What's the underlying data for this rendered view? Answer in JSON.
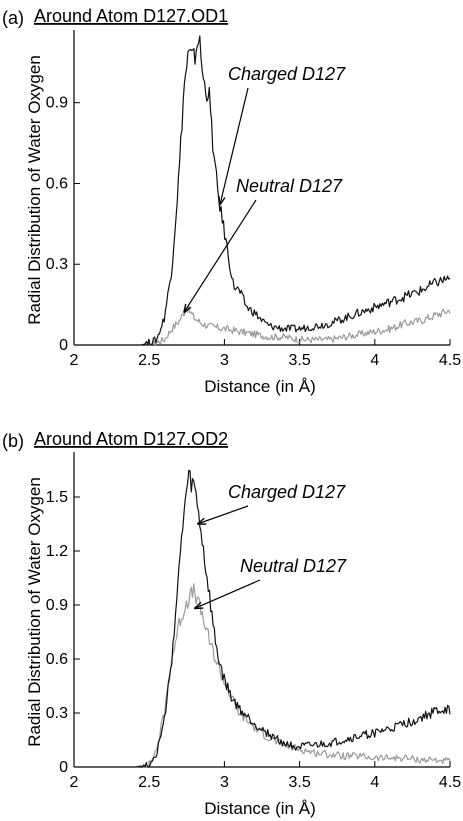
{
  "chart_data": [
    {
      "type": "line",
      "panel_label": "(a)",
      "title": "Around Atom D127.OD1",
      "xlabel": "Distance (in Å)",
      "ylabel": "Radial Distribution of Water Oxygen",
      "xlim": [
        2,
        4.5
      ],
      "ylim": [
        0,
        1.17
      ],
      "xticks": [
        2,
        2.5,
        3,
        3.5,
        4,
        4.5
      ],
      "xtick_labels": [
        "2",
        "2.5",
        "3",
        "3.5",
        "4",
        "4.5"
      ],
      "yticks": [
        0,
        0.3,
        0.6,
        0.9
      ],
      "ytick_labels": [
        "0",
        "0.3",
        "0.6",
        "0.9"
      ],
      "grid": false,
      "legend": "none",
      "series": [
        {
          "name": "Charged D127",
          "color": "#111111",
          "points": [
            [
              2.45,
              0
            ],
            [
              2.55,
              0.02
            ],
            [
              2.6,
              0.1
            ],
            [
              2.65,
              0.28
            ],
            [
              2.7,
              0.65
            ],
            [
              2.73,
              0.95
            ],
            [
              2.76,
              1.08
            ],
            [
              2.8,
              1.06
            ],
            [
              2.83,
              1.15
            ],
            [
              2.86,
              0.98
            ],
            [
              2.9,
              0.92
            ],
            [
              2.93,
              0.7
            ],
            [
              2.96,
              0.55
            ],
            [
              3.0,
              0.42
            ],
            [
              3.03,
              0.32
            ],
            [
              3.06,
              0.22
            ],
            [
              3.1,
              0.2
            ],
            [
              3.15,
              0.14
            ],
            [
              3.2,
              0.12
            ],
            [
              3.25,
              0.09
            ],
            [
              3.3,
              0.07
            ],
            [
              3.4,
              0.06
            ],
            [
              3.5,
              0.06
            ],
            [
              3.6,
              0.07
            ],
            [
              3.7,
              0.08
            ],
            [
              3.8,
              0.1
            ],
            [
              3.9,
              0.12
            ],
            [
              4.0,
              0.14
            ],
            [
              4.1,
              0.16
            ],
            [
              4.2,
              0.18
            ],
            [
              4.3,
              0.2
            ],
            [
              4.4,
              0.23
            ],
            [
              4.5,
              0.25
            ]
          ]
        },
        {
          "name": "Neutral D127",
          "color": "#9a9a9a",
          "points": [
            [
              2.5,
              0
            ],
            [
              2.6,
              0.02
            ],
            [
              2.65,
              0.06
            ],
            [
              2.7,
              0.09
            ],
            [
              2.75,
              0.14
            ],
            [
              2.8,
              0.1
            ],
            [
              2.85,
              0.08
            ],
            [
              2.9,
              0.07
            ],
            [
              3.0,
              0.06
            ],
            [
              3.1,
              0.05
            ],
            [
              3.2,
              0.04
            ],
            [
              3.3,
              0.03
            ],
            [
              3.4,
              0.03
            ],
            [
              3.5,
              0.02
            ],
            [
              3.6,
              0.02
            ],
            [
              3.7,
              0.02
            ],
            [
              3.8,
              0.03
            ],
            [
              3.9,
              0.04
            ],
            [
              4.0,
              0.05
            ],
            [
              4.1,
              0.06
            ],
            [
              4.2,
              0.08
            ],
            [
              4.3,
              0.09
            ],
            [
              4.4,
              0.11
            ],
            [
              4.5,
              0.13
            ]
          ]
        }
      ],
      "annotations": [
        {
          "text": "Charged D127",
          "x": 3.3,
          "y": 0.98,
          "arrow_to": [
            2.97,
            0.52
          ]
        },
        {
          "text": "Neutral D127",
          "x": 3.55,
          "y": 0.58,
          "arrow_to": [
            2.73,
            0.12
          ]
        }
      ]
    },
    {
      "type": "line",
      "panel_label": "(b)",
      "title": "Around Atom D127.OD2",
      "xlabel": "Distance (in Å)",
      "ylabel": "Radial Distribution of Water Oxygen",
      "xlim": [
        2,
        4.5
      ],
      "ylim": [
        0,
        1.75
      ],
      "xticks": [
        2,
        2.5,
        3,
        3.5,
        4,
        4.5
      ],
      "xtick_labels": [
        "2",
        "2.5",
        "3",
        "3.5",
        "4",
        "4.5"
      ],
      "yticks": [
        0,
        0.3,
        0.6,
        0.9,
        1.2,
        1.5
      ],
      "ytick_labels": [
        "0",
        "0.3",
        "0.6",
        "0.9",
        "1.2",
        "1.5"
      ],
      "grid": false,
      "legend": "none",
      "series": [
        {
          "name": "Charged D127",
          "color": "#111111",
          "points": [
            [
              2.4,
              0
            ],
            [
              2.5,
              0.01
            ],
            [
              2.55,
              0.08
            ],
            [
              2.6,
              0.25
            ],
            [
              2.65,
              0.6
            ],
            [
              2.7,
              1.1
            ],
            [
              2.73,
              1.4
            ],
            [
              2.76,
              1.6
            ],
            [
              2.8,
              1.55
            ],
            [
              2.83,
              1.4
            ],
            [
              2.86,
              1.2
            ],
            [
              2.9,
              0.95
            ],
            [
              2.93,
              0.75
            ],
            [
              2.96,
              0.6
            ],
            [
              3.0,
              0.48
            ],
            [
              3.05,
              0.38
            ],
            [
              3.1,
              0.32
            ],
            [
              3.2,
              0.24
            ],
            [
              3.3,
              0.18
            ],
            [
              3.4,
              0.13
            ],
            [
              3.5,
              0.11
            ],
            [
              3.6,
              0.12
            ],
            [
              3.7,
              0.13
            ],
            [
              3.8,
              0.15
            ],
            [
              3.9,
              0.17
            ],
            [
              4.0,
              0.19
            ],
            [
              4.1,
              0.21
            ],
            [
              4.2,
              0.24
            ],
            [
              4.3,
              0.27
            ],
            [
              4.4,
              0.31
            ],
            [
              4.5,
              0.32
            ]
          ]
        },
        {
          "name": "Neutral D127",
          "color": "#9a9a9a",
          "points": [
            [
              2.4,
              0
            ],
            [
              2.5,
              0.01
            ],
            [
              2.55,
              0.1
            ],
            [
              2.6,
              0.3
            ],
            [
              2.65,
              0.6
            ],
            [
              2.7,
              0.8
            ],
            [
              2.75,
              0.92
            ],
            [
              2.8,
              0.98
            ],
            [
              2.83,
              0.9
            ],
            [
              2.86,
              0.82
            ],
            [
              2.9,
              0.7
            ],
            [
              2.95,
              0.58
            ],
            [
              3.0,
              0.47
            ],
            [
              3.05,
              0.38
            ],
            [
              3.1,
              0.3
            ],
            [
              3.2,
              0.22
            ],
            [
              3.3,
              0.16
            ],
            [
              3.4,
              0.12
            ],
            [
              3.5,
              0.1
            ],
            [
              3.6,
              0.08
            ],
            [
              3.7,
              0.07
            ],
            [
              3.8,
              0.06
            ],
            [
              3.9,
              0.06
            ],
            [
              4.0,
              0.05
            ],
            [
              4.1,
              0.05
            ],
            [
              4.2,
              0.05
            ],
            [
              4.3,
              0.04
            ],
            [
              4.4,
              0.04
            ],
            [
              4.5,
              0.03
            ]
          ]
        }
      ],
      "annotations": [
        {
          "text": "Charged D127",
          "x": 3.32,
          "y": 1.55,
          "arrow_to": [
            2.82,
            1.35
          ]
        },
        {
          "text": "Neutral D127",
          "x": 3.4,
          "y": 1.1,
          "arrow_to": [
            2.8,
            0.88
          ]
        }
      ]
    }
  ]
}
